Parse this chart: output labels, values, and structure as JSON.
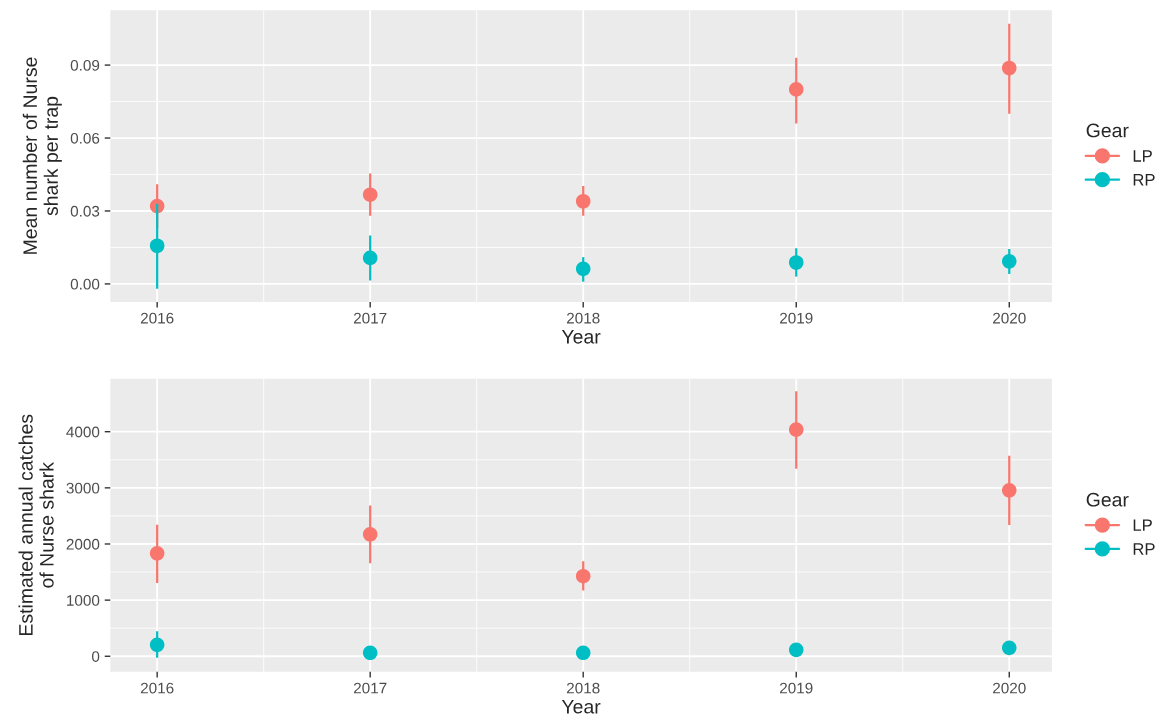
{
  "chart_data": [
    {
      "type": "scatter",
      "xlabel": "Year",
      "ylabel": "Mean number of Nurse\nshark per trap",
      "legend_title": "Gear",
      "legend": "right",
      "grid": true,
      "marker": "circle",
      "x": [
        2016,
        2017,
        2018,
        2019,
        2020
      ],
      "xlim": [
        2015.78,
        2020.2
      ],
      "xticks": [
        2016,
        2017,
        2018,
        2019,
        2020
      ],
      "ylim": [
        -0.0074,
        0.1126
      ],
      "yticks": [
        {
          "value": 0,
          "label": "0.00"
        },
        {
          "value": 0.03,
          "label": "0.03"
        },
        {
          "value": 0.06,
          "label": "0.06"
        },
        {
          "value": 0.09,
          "label": "0.09"
        }
      ],
      "series": [
        {
          "name": "LP",
          "color": "#f8766d",
          "values": [
            0.032,
            0.0367,
            0.034,
            0.08,
            0.0888
          ],
          "errors": [
            [
              0.023,
              0.041
            ],
            [
              0.028,
              0.0454
            ],
            [
              0.028,
              0.0403
            ],
            [
              0.066,
              0.093
            ],
            [
              0.07,
              0.107
            ]
          ]
        },
        {
          "name": "RP",
          "color": "#00bfc4",
          "values": [
            0.0157,
            0.0107,
            0.0062,
            0.0088,
            0.0093
          ],
          "errors": [
            [
              -0.002,
              0.033
            ],
            [
              0.0014,
              0.0199
            ],
            [
              0.0009,
              0.011
            ],
            [
              0.003,
              0.0147
            ],
            [
              0.0041,
              0.0144
            ]
          ]
        }
      ]
    },
    {
      "type": "scatter",
      "xlabel": "Year",
      "ylabel": "Estimated annual catches\nof Nurse shark",
      "legend_title": "Gear",
      "legend": "right",
      "grid": true,
      "marker": "circle",
      "x": [
        2016,
        2017,
        2018,
        2019,
        2020
      ],
      "xlim": [
        2015.78,
        2020.2
      ],
      "xticks": [
        2016,
        2017,
        2018,
        2019,
        2020
      ],
      "ylim": [
        -278,
        4945
      ],
      "yticks": [
        0,
        1000,
        2000,
        3000,
        4000
      ],
      "series": [
        {
          "name": "LP",
          "color": "#f8766d",
          "values": [
            1833,
            2172,
            1426,
            4037,
            2955
          ],
          "errors": [
            [
              1305,
              2343
            ],
            [
              1655,
              2687
            ],
            [
              1171,
              1694
            ],
            [
              3341,
              4720
            ],
            [
              2337,
              3573
            ]
          ]
        },
        {
          "name": "RP",
          "color": "#00bfc4",
          "values": [
            203,
            62,
            62,
            114,
            150
          ],
          "errors": [
            [
              -27,
              446
            ],
            null,
            null,
            null,
            null
          ]
        }
      ]
    }
  ]
}
